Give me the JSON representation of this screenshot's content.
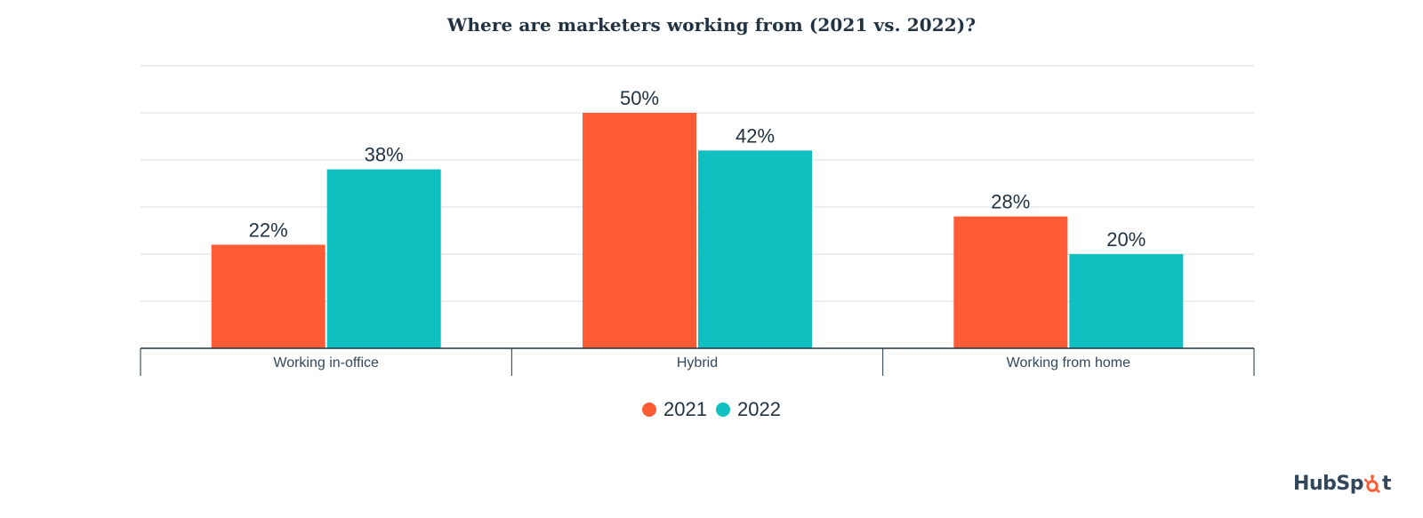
{
  "chart_data": {
    "type": "bar",
    "title": "Where are marketers working from (2021 vs. 2022)?",
    "categories": [
      "Working in-office",
      "Hybrid",
      "Working from home"
    ],
    "series": [
      {
        "name": "2021",
        "values": [
          22,
          50,
          28
        ],
        "labels": [
          "22%",
          "50%",
          "28%"
        ],
        "color": "#ff5c35"
      },
      {
        "name": "2022",
        "values": [
          38,
          42,
          20
        ],
        "labels": [
          "38%",
          "42%",
          "20%"
        ],
        "color": "#10bfbf"
      }
    ],
    "ylim": [
      0,
      60
    ],
    "grid": true,
    "legend_position": "bottom-center"
  },
  "brand": {
    "logo_text": "HubSpot",
    "logo_color": "#33475b",
    "sprocket_color": "#ff5c35"
  }
}
